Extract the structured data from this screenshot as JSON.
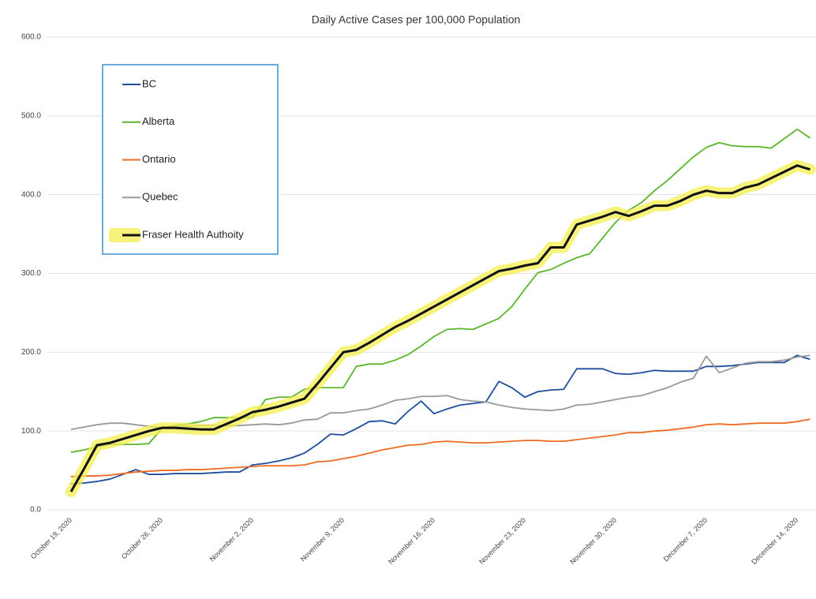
{
  "chart_data": {
    "type": "line",
    "title": "Daily Active Cases per 100,000 Population",
    "categories": [
      "October 19, 2020",
      null,
      null,
      null,
      null,
      null,
      null,
      "October 26, 2020",
      null,
      null,
      null,
      null,
      null,
      null,
      "November 2, 2020",
      null,
      null,
      null,
      null,
      null,
      null,
      "November 9, 2020",
      null,
      null,
      null,
      null,
      null,
      null,
      "November 16, 2020",
      null,
      null,
      null,
      null,
      null,
      null,
      "November 23, 2020",
      null,
      null,
      null,
      null,
      null,
      null,
      "November 30, 2020",
      null,
      null,
      null,
      null,
      null,
      null,
      "December 7, 2020",
      null,
      null,
      null,
      null,
      null,
      null,
      "December 14, 2020",
      null
    ],
    "ylim": [
      0,
      600
    ],
    "yticks": [
      {
        "value": 0,
        "label": "0.0"
      },
      {
        "value": 100,
        "label": "100.0"
      },
      {
        "value": 200,
        "label": "200.0"
      },
      {
        "value": 300,
        "label": "300.0"
      },
      {
        "value": 400,
        "label": "400.0"
      },
      {
        "value": 500,
        "label": "500.0"
      },
      {
        "value": 600,
        "label": "600.0"
      }
    ],
    "grid": true,
    "series": [
      {
        "name": "BC",
        "color": "#1f4e9c",
        "values": [
          33,
          34,
          36,
          39,
          45,
          51,
          45,
          45,
          46,
          46,
          46,
          47,
          48,
          48,
          57,
          59,
          62,
          66,
          72,
          83,
          96,
          95,
          103,
          112,
          113,
          109,
          125,
          138,
          122,
          128,
          133,
          135,
          137,
          163,
          155,
          143,
          150,
          152,
          153,
          179,
          179,
          179,
          173,
          172,
          174,
          177,
          176,
          176,
          176,
          182,
          182,
          183,
          185,
          187,
          187,
          187,
          196,
          191
        ]
      },
      {
        "name": "Alberta",
        "color": "#5bb52a",
        "values": [
          73,
          76,
          80,
          83,
          83,
          83,
          84,
          103,
          107,
          109,
          112,
          117,
          117,
          117,
          117,
          140,
          143,
          143,
          153,
          155,
          155,
          155,
          182,
          185,
          185,
          190,
          197,
          208,
          220,
          229,
          230,
          229,
          236,
          243,
          258,
          280,
          301,
          305,
          313,
          320,
          325,
          345,
          365,
          380,
          390,
          405,
          418,
          433,
          448,
          460,
          466,
          462,
          461,
          461,
          459,
          471,
          483,
          472
        ]
      },
      {
        "name": "Ontario",
        "color": "#ed6b22",
        "values": [
          42,
          43,
          43,
          44,
          46,
          48,
          49,
          50,
          50,
          51,
          51,
          52,
          53,
          54,
          55,
          56,
          56,
          56,
          57,
          61,
          62,
          65,
          68,
          72,
          76,
          79,
          82,
          83,
          86,
          87,
          86,
          85,
          85,
          86,
          87,
          88,
          88,
          87,
          87,
          89,
          91,
          93,
          95,
          98,
          98,
          100,
          101,
          103,
          105,
          108,
          109,
          108,
          109,
          110,
          110,
          110,
          112,
          115
        ]
      },
      {
        "name": "Quebec",
        "color": "#999999",
        "values": [
          102,
          105,
          108,
          110,
          110,
          108,
          106,
          104,
          105,
          106,
          107,
          107,
          107,
          107,
          108,
          109,
          108,
          110,
          114,
          115,
          123,
          123,
          126,
          128,
          133,
          139,
          141,
          144,
          144,
          145,
          140,
          138,
          137,
          133,
          130,
          128,
          127,
          126,
          128,
          133,
          134,
          137,
          140,
          143,
          145,
          150,
          155,
          162,
          167,
          195,
          174,
          180,
          186,
          188,
          188,
          190,
          194,
          196
        ]
      },
      {
        "name": "Fraser Health Authoity",
        "color": "#111111",
        "highlight": "#f3ee4e",
        "values": [
          23,
          52,
          82,
          85,
          90,
          95,
          100,
          104,
          104,
          103,
          102,
          102,
          109,
          116,
          124,
          127,
          131,
          136,
          141,
          160,
          180,
          200,
          203,
          212,
          222,
          232,
          240,
          249,
          258,
          267,
          276,
          285,
          294,
          303,
          306,
          310,
          313,
          333,
          333,
          362,
          367,
          372,
          378,
          373,
          379,
          386,
          386,
          392,
          400,
          405,
          402,
          402,
          409,
          413,
          421,
          429,
          437,
          432
        ]
      }
    ]
  }
}
